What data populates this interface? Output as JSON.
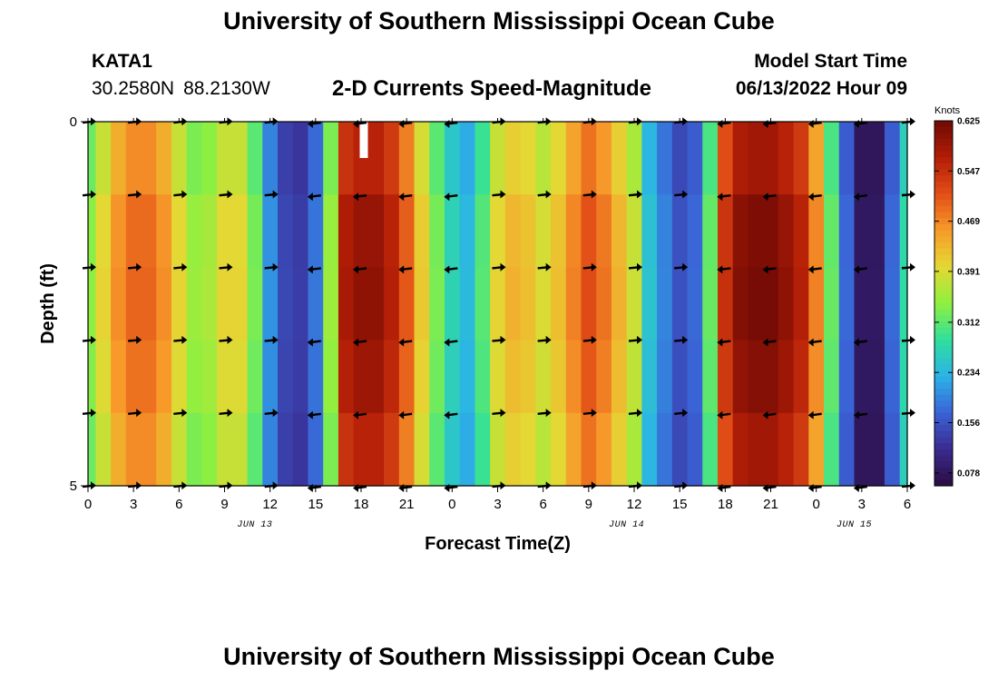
{
  "header": {
    "title": "University of Southern Mississippi Ocean Cube",
    "station": "KATA1",
    "lat": "30.2580N",
    "lon": "88.2130W",
    "subtitle": "2-D Currents Speed-Magnitude",
    "model_start_label": "Model Start Time",
    "model_start_value": "06/13/2022 Hour 09"
  },
  "footer": {
    "title": "University of Southern Mississippi Ocean Cube"
  },
  "chart_data": {
    "type": "heatmap",
    "title": "2-D Currents Speed-Magnitude",
    "xlabel": "Forecast Time(Z)",
    "ylabel": "Depth (ft)",
    "x_tick_labels": [
      "0",
      "3",
      "6",
      "9",
      "12",
      "15",
      "18",
      "21",
      "0",
      "3",
      "6",
      "9",
      "12",
      "15",
      "18",
      "21",
      "0",
      "3",
      "6"
    ],
    "x_ticks_hours": [
      0,
      3,
      6,
      9,
      12,
      15,
      18,
      21,
      24,
      27,
      30,
      33,
      36,
      39,
      42,
      45,
      48,
      51,
      54
    ],
    "x_range_hours": [
      0,
      54
    ],
    "date_labels": [
      {
        "text": "JUN 13",
        "hour": 11
      },
      {
        "text": "JUN 14",
        "hour": 35.5
      },
      {
        "text": "JUN 15",
        "hour": 50.5
      }
    ],
    "y_tick_labels": [
      "0",
      "5"
    ],
    "y_range_ft": [
      0,
      5
    ],
    "y_inner_ticks_ft": [
      1,
      2,
      3,
      4
    ],
    "colorbar": {
      "units": "Knots",
      "ticks": [
        "0.625",
        "0.547",
        "0.469",
        "0.391",
        "0.312",
        "0.234",
        "0.156",
        "0.078"
      ],
      "min": 0.058,
      "max": 0.625,
      "colors": [
        "#2a0d41",
        "#3a2a8f",
        "#3a63d6",
        "#2cb3e8",
        "#2fdf9c",
        "#8ff03f",
        "#e4d834",
        "#f79a2a",
        "#e24e17",
        "#b21d06",
        "#6e0a05"
      ]
    },
    "time_hours": [
      0,
      1,
      2,
      3,
      4,
      5,
      6,
      7,
      8,
      9,
      10,
      11,
      12,
      13,
      14,
      15,
      16,
      17,
      18,
      19,
      20,
      21,
      22,
      23,
      24,
      25,
      26,
      27,
      28,
      29,
      30,
      31,
      32,
      33,
      34,
      35,
      36,
      37,
      38,
      39,
      40,
      41,
      42,
      43,
      44,
      45,
      46,
      47,
      48,
      49,
      50,
      51,
      52,
      53,
      54
    ],
    "speed_knots": [
      0.33,
      0.39,
      0.45,
      0.48,
      0.48,
      0.45,
      0.39,
      0.34,
      0.35,
      0.39,
      0.39,
      0.32,
      0.2,
      0.14,
      0.13,
      0.18,
      0.34,
      0.56,
      0.58,
      0.58,
      0.55,
      0.49,
      0.4,
      0.32,
      0.26,
      0.23,
      0.3,
      0.39,
      0.42,
      0.41,
      0.38,
      0.41,
      0.46,
      0.5,
      0.47,
      0.42,
      0.37,
      0.24,
      0.19,
      0.15,
      0.17,
      0.31,
      0.53,
      0.59,
      0.6,
      0.6,
      0.58,
      0.55,
      0.46,
      0.31,
      0.17,
      0.08,
      0.08,
      0.17,
      0.27
    ],
    "row_factors": [
      0.97,
      1.02,
      1.03,
      1.01,
      0.97
    ],
    "white_gap_hour": 18,
    "vector_depths_ft": [
      0,
      1,
      2,
      3,
      4,
      5
    ],
    "vector_directions": [
      "E",
      "E",
      "E",
      "E",
      "E",
      "W",
      "W",
      "W",
      "W",
      "E",
      "E",
      "E",
      "E",
      "E",
      "W",
      "W",
      "W",
      "W",
      "E"
    ]
  }
}
